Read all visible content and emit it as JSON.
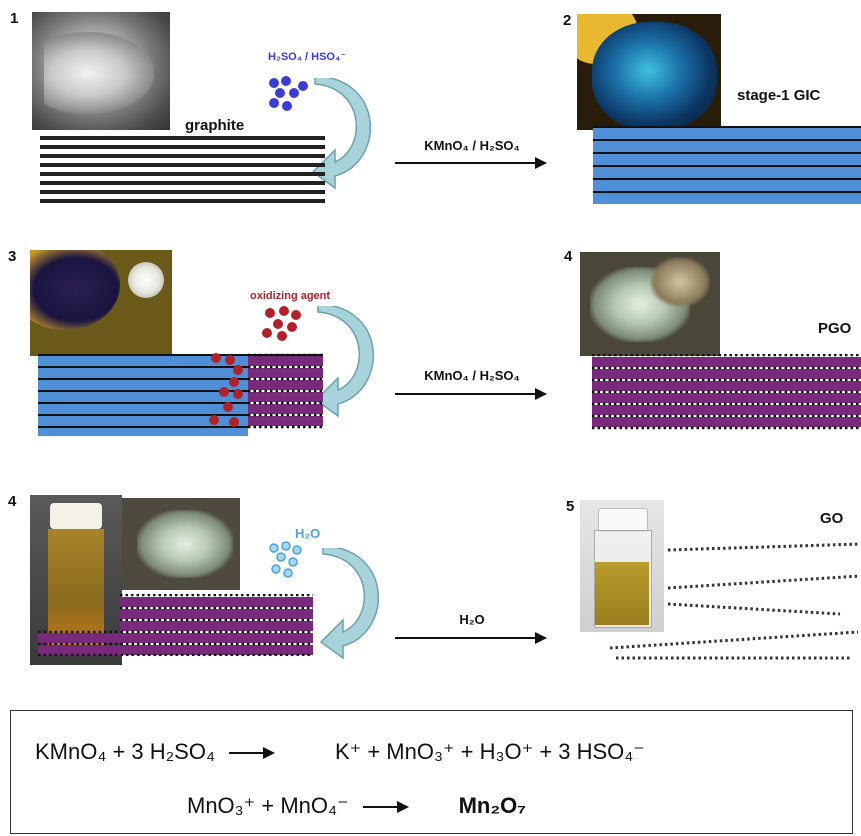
{
  "colors": {
    "graphite_layer": "#222222",
    "gic_layer": "#4f8fd8",
    "go_layer": "#7a2a7c",
    "acid_dot": "#3b3bd6",
    "oxidant_dot": "#b0222a",
    "water_dot": "#4aa3d8",
    "curved_arrow": "#a9d3da"
  },
  "panels": {
    "p1": {
      "number": "1",
      "label": "graphite",
      "reagent": "H₂SO₄ / HSO₄⁻"
    },
    "p2": {
      "number": "2",
      "label": "stage-1 GIC"
    },
    "p3": {
      "number": "3",
      "reagent": "oxidizing agent"
    },
    "p4a": {
      "number": "4",
      "label": "PGO"
    },
    "p4b": {
      "number": "4",
      "reagent": "H₂O"
    },
    "p5": {
      "number": "5",
      "label": "GO"
    }
  },
  "arrows": {
    "a1": "KMnO₄ / H₂SO₄",
    "a2": "KMnO₄ / H₂SO₄",
    "a3": "H₂O"
  },
  "equations": {
    "eq1_left": "KMnO₄ + 3 H₂SO₄",
    "eq1_right": "K⁺ + MnO₃⁺ + H₃O⁺ + 3 HSO₄⁻",
    "eq2_left": "MnO₃⁺ + MnO₄⁻",
    "eq2_right": "Mn₂O₇"
  }
}
